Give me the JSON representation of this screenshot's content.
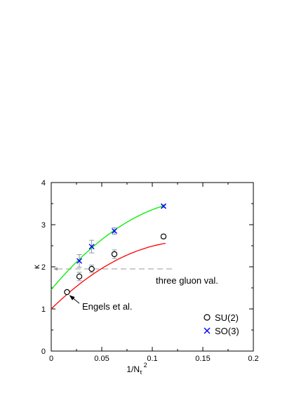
{
  "chart_data": {
    "type": "scatter",
    "xlabel": "1/N_τ^2",
    "xlabel_parts": {
      "base": "1/N",
      "sub": "τ",
      "sup": "2"
    },
    "ylabel": "κ",
    "xlim": [
      0,
      0.2
    ],
    "ylim": [
      0,
      4
    ],
    "xticks": [
      "0",
      "0.05",
      "0.1",
      "0.15",
      "0.2"
    ],
    "yticks": [
      "0",
      "1",
      "2",
      "3",
      "4"
    ],
    "grid": false,
    "legend_position": "bottom-right",
    "series": [
      {
        "name": "SU(2)",
        "marker": "circle",
        "color": "#000000",
        "x": [
          0.0156,
          0.0278,
          0.04,
          0.0625,
          0.1111
        ],
        "y": [
          1.4,
          1.77,
          1.95,
          2.3,
          2.72
        ],
        "yerr": [
          0.0,
          0.1,
          0.09,
          0.1,
          0.05
        ]
      },
      {
        "name": "SO(3)",
        "marker": "cross",
        "color": "#0000ff",
        "x": [
          0.0278,
          0.04,
          0.0625,
          0.1111
        ],
        "y": [
          2.14,
          2.48,
          2.85,
          3.44
        ],
        "yerr": [
          0.15,
          0.15,
          0.08,
          0.03
        ]
      }
    ],
    "fits": [
      {
        "series": "SU(2)",
        "color": "#ff0000",
        "coeffs": [
          1.0,
          23.5,
          -86.0
        ],
        "x_range": [
          0,
          0.113
        ]
      },
      {
        "series": "SO(3)",
        "color": "#00ee00",
        "coeffs": [
          1.46,
          28.5,
          -95.5
        ],
        "x_range": [
          0,
          0.113
        ]
      }
    ],
    "reference_line": {
      "y": 1.95,
      "x_range": [
        0,
        0.122
      ],
      "color": "#999999",
      "style": "dashed",
      "label": "three gluon val."
    },
    "annotations": [
      {
        "text": "Engels et al.",
        "points_to": [
          0.0156,
          1.4
        ]
      }
    ]
  }
}
